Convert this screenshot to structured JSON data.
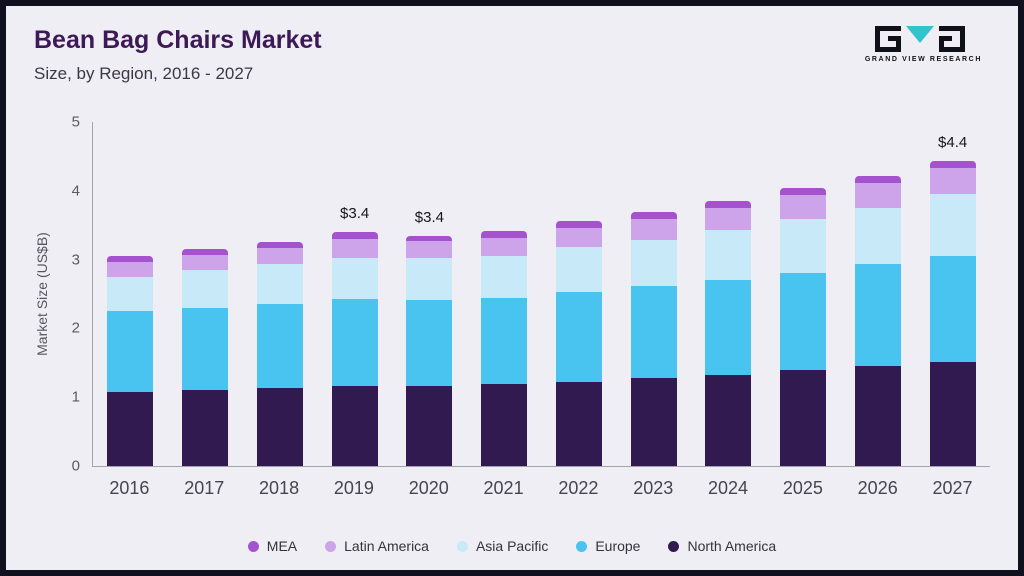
{
  "header": {
    "title": "Bean Bag Chairs Market",
    "subtitle": "Size, by Region, 2016 - 2027",
    "logo_text": "GRAND VIEW RESEARCH"
  },
  "colors": {
    "background": "#efeef4",
    "frame_border": "#10101f",
    "title": "#3d1a55",
    "logo_triangle": "#2fc4cf",
    "axis_line": "#a3a3ac"
  },
  "chart_data": {
    "type": "bar",
    "stacked": true,
    "title": "Bean Bag Chairs Market Size, by Region, 2016 - 2027",
    "xlabel": "",
    "ylabel": "Market Size (US$B)",
    "ylim": [
      0,
      5
    ],
    "yticks": [
      0,
      1,
      2,
      3,
      4,
      5
    ],
    "grid": false,
    "legend_position": "bottom",
    "categories": [
      "2016",
      "2017",
      "2018",
      "2019",
      "2020",
      "2021",
      "2022",
      "2023",
      "2024",
      "2025",
      "2026",
      "2027"
    ],
    "series": [
      {
        "name": "North America",
        "color": "#311a4f",
        "values": [
          1.07,
          1.1,
          1.13,
          1.17,
          1.16,
          1.19,
          1.22,
          1.28,
          1.33,
          1.39,
          1.45,
          1.51
        ]
      },
      {
        "name": "Europe",
        "color": "#49c3ef",
        "values": [
          1.18,
          1.2,
          1.23,
          1.26,
          1.25,
          1.25,
          1.31,
          1.34,
          1.38,
          1.42,
          1.48,
          1.54
        ]
      },
      {
        "name": "Asia Pacific",
        "color": "#c8e9f8",
        "values": [
          0.5,
          0.55,
          0.58,
          0.6,
          0.61,
          0.62,
          0.65,
          0.67,
          0.72,
          0.78,
          0.82,
          0.9
        ]
      },
      {
        "name": "Latin America",
        "color": "#cda3e9",
        "values": [
          0.22,
          0.22,
          0.23,
          0.27,
          0.25,
          0.26,
          0.28,
          0.3,
          0.32,
          0.35,
          0.37,
          0.38
        ]
      },
      {
        "name": "MEA",
        "color": "#a552cf",
        "values": [
          0.08,
          0.08,
          0.08,
          0.1,
          0.08,
          0.09,
          0.1,
          0.1,
          0.1,
          0.1,
          0.1,
          0.1
        ]
      }
    ],
    "annotations": [
      {
        "category": "2019",
        "text": "$3.4"
      },
      {
        "category": "2020",
        "text": "$3.4"
      },
      {
        "category": "2027",
        "text": "$4.4"
      }
    ],
    "legend": [
      "MEA",
      "Latin America",
      "Asia Pacific",
      "Europe",
      "North America"
    ]
  }
}
